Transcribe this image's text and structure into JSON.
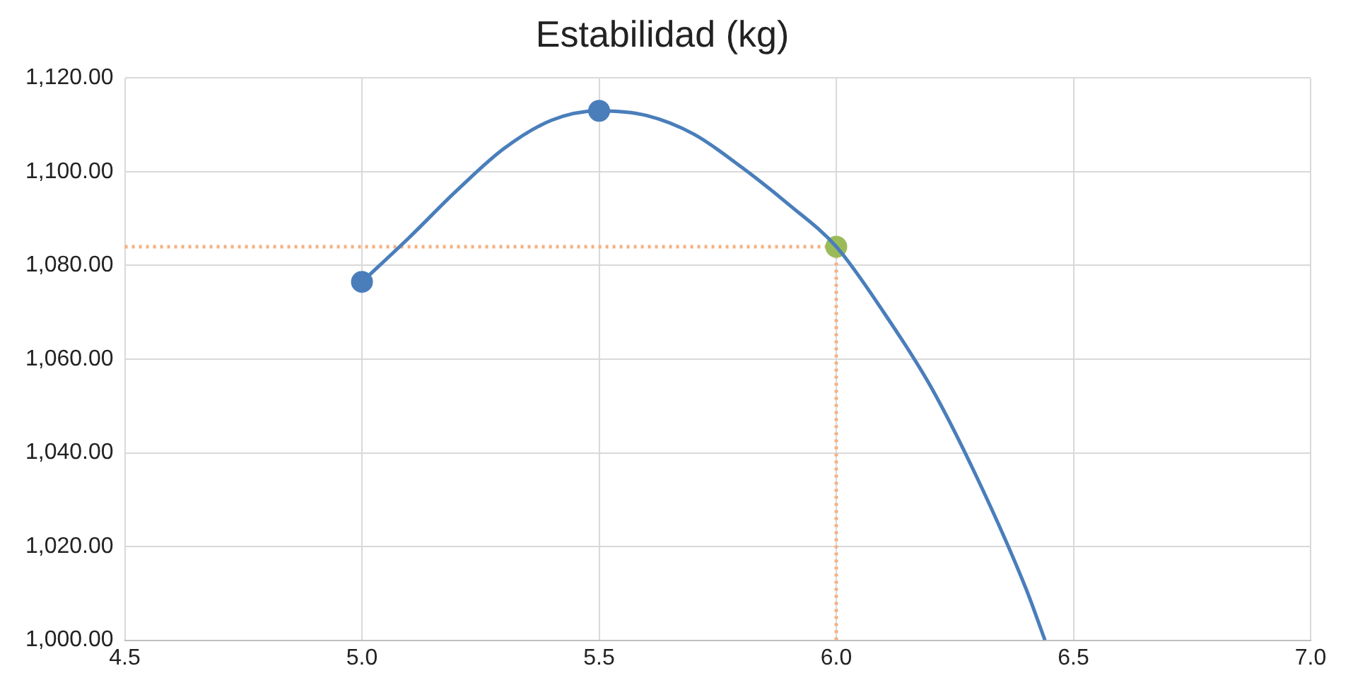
{
  "chart_data": {
    "type": "line",
    "title": "Estabilidad (kg)",
    "xlim": [
      4.5,
      7.0
    ],
    "xticks": [
      4.5,
      {
        "value": 5,
        "label": "5.0"
      },
      5.5,
      {
        "value": 6,
        "label": "6.0"
      },
      6.5,
      {
        "value": 7,
        "label": "7.0"
      }
    ],
    "ylim": [
      1000,
      1120
    ],
    "yticks": [
      {
        "value": 1000,
        "label": "1,000.00"
      },
      {
        "value": 1020,
        "label": "1,020.00"
      },
      {
        "value": 1040,
        "label": "1,040.00"
      },
      {
        "value": 1060,
        "label": "1,060.00"
      },
      {
        "value": 1080,
        "label": "1,080.00"
      },
      {
        "value": 1100,
        "label": "1,100.00"
      },
      {
        "value": 1120,
        "label": "1,120.00"
      }
    ],
    "grid": true,
    "legend": false,
    "series": [
      {
        "color": "#4a7ebb",
        "marker": "none",
        "x": [
          5.0,
          5.1,
          5.2,
          5.3,
          5.4,
          5.5,
          5.6,
          5.7,
          5.8,
          5.9,
          6.0,
          6.1,
          6.2,
          6.3,
          6.4,
          6.44
        ],
        "values": [
          1076.5,
          1086,
          1096,
          1105,
          1111,
          1113,
          1112,
          1108,
          1101,
          1093,
          1084,
          1070,
          1054,
          1034,
          1011,
          1000
        ]
      },
      {
        "type": "scatter",
        "color": "#4a7ebb",
        "marker": "circle",
        "x": [
          5.0,
          5.5
        ],
        "values": [
          1076.5,
          1113
        ]
      },
      {
        "type": "scatter",
        "color": "#9bbb59",
        "marker": "circle",
        "x": [
          6.0
        ],
        "values": [
          1084
        ]
      }
    ],
    "ref_lines": [
      {
        "axis": "y",
        "value": 1084,
        "color": "#f4b183",
        "line_style": "dotted"
      },
      {
        "axis": "x",
        "value": 6.0,
        "color": "#f4b183",
        "line_style": "dotted"
      }
    ]
  }
}
